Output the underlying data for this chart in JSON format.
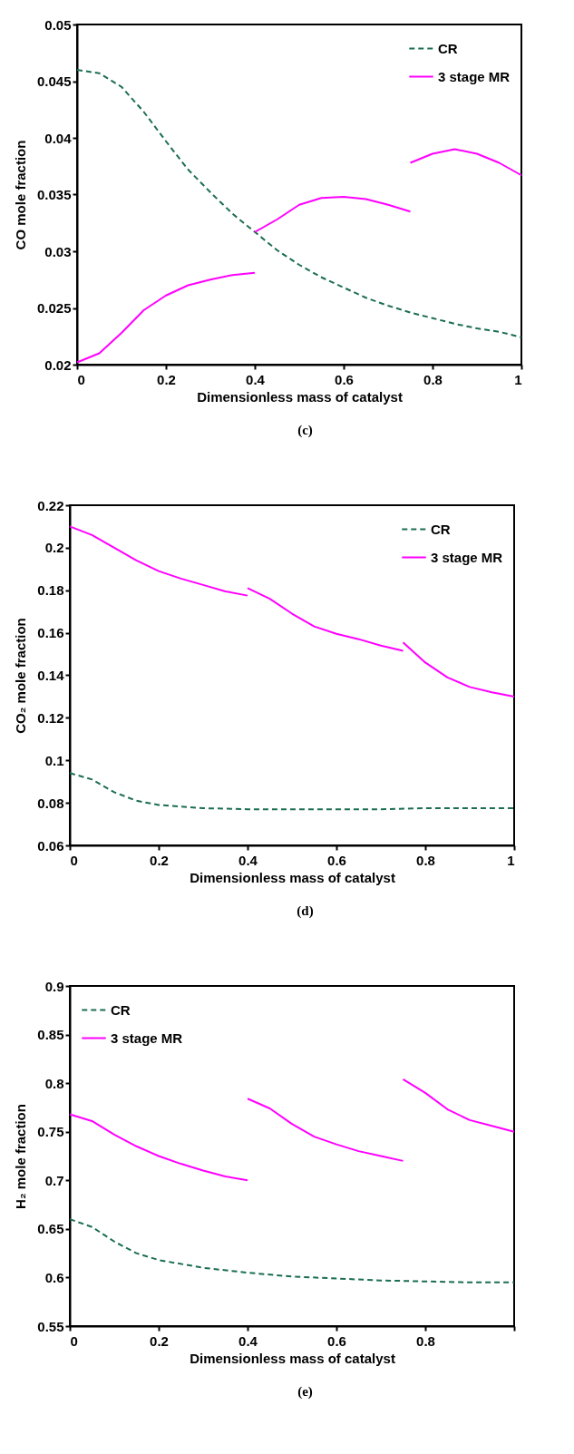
{
  "chart_data": [
    {
      "type": "line",
      "xlabel": "Dimensionless mass of catalyst",
      "ylabel": "CO mole fraction",
      "annotations": [
        "(c)"
      ],
      "xlim": [
        0,
        1
      ],
      "ylim": [
        0.02,
        0.05
      ],
      "xticks": [
        0,
        0.2,
        0.4,
        0.6,
        0.8,
        1
      ],
      "yticks": [
        0.02,
        0.025,
        0.03,
        0.035,
        0.04,
        0.045,
        0.05
      ],
      "legend": "top right",
      "series": [
        {
          "name": "CR",
          "color": "#1b6e4f",
          "line_style": "dashed",
          "x": [
            0,
            0.05,
            0.1,
            0.15,
            0.2,
            0.25,
            0.3,
            0.35,
            0.4,
            0.45,
            0.5,
            0.55,
            0.6,
            0.65,
            0.7,
            0.75,
            0.8,
            0.85,
            0.9,
            0.95,
            1
          ],
          "values": [
            0.046,
            0.0457,
            0.0445,
            0.0423,
            0.0397,
            0.0372,
            0.0352,
            0.0333,
            0.0317,
            0.0301,
            0.0288,
            0.0277,
            0.0268,
            0.0259,
            0.0252,
            0.0246,
            0.0241,
            0.0236,
            0.0232,
            0.0229,
            0.0224
          ]
        },
        {
          "name": "3 stage MR",
          "color": "#ff00ff",
          "line_style": "solid",
          "x": [
            0,
            0.05,
            0.1,
            0.15,
            0.2,
            0.25,
            0.3,
            0.35,
            0.4
          ],
          "values": [
            0.0202,
            0.021,
            0.0228,
            0.0248,
            0.0261,
            0.027,
            0.0275,
            0.0279,
            0.0281
          ]
        },
        {
          "color": "#ff00ff",
          "line_style": "solid",
          "x": [
            0.4,
            0.45,
            0.5,
            0.55,
            0.6,
            0.65,
            0.7,
            0.75
          ],
          "values": [
            0.0317,
            0.0328,
            0.0341,
            0.0347,
            0.0348,
            0.0346,
            0.0341,
            0.0335
          ]
        },
        {
          "color": "#ff00ff",
          "line_style": "solid",
          "x": [
            0.75,
            0.8,
            0.85,
            0.9,
            0.95,
            1
          ],
          "values": [
            0.0378,
            0.0386,
            0.039,
            0.0386,
            0.0378,
            0.0367
          ]
        }
      ]
    },
    {
      "type": "line",
      "xlabel": "Dimensionless mass of catalyst",
      "ylabel": "CO₂ mole fraction",
      "annotations": [
        "(d)"
      ],
      "xlim": [
        0,
        1
      ],
      "ylim": [
        0.06,
        0.22
      ],
      "xticks": [
        0,
        0.2,
        0.4,
        0.6,
        0.8,
        1
      ],
      "yticks": [
        0.06,
        0.08,
        0.1,
        0.12,
        0.14,
        0.16,
        0.18,
        0.2,
        0.22
      ],
      "legend": "top right",
      "series": [
        {
          "name": "CR",
          "color": "#1b6e4f",
          "line_style": "dashed",
          "x": [
            0,
            0.05,
            0.1,
            0.15,
            0.2,
            0.3,
            0.4,
            0.5,
            0.6,
            0.7,
            0.8,
            0.9,
            1
          ],
          "values": [
            0.094,
            0.091,
            0.085,
            0.081,
            0.079,
            0.0775,
            0.077,
            0.077,
            0.077,
            0.077,
            0.0775,
            0.0775,
            0.0775
          ]
        },
        {
          "name": "3 stage MR",
          "color": "#ff00ff",
          "line_style": "solid",
          "x": [
            0,
            0.05,
            0.1,
            0.15,
            0.2,
            0.25,
            0.3,
            0.35,
            0.4
          ],
          "values": [
            0.21,
            0.206,
            0.2,
            0.194,
            0.189,
            0.1855,
            0.1825,
            0.1795,
            0.1775
          ]
        },
        {
          "color": "#ff00ff",
          "line_style": "solid",
          "x": [
            0.4,
            0.45,
            0.5,
            0.55,
            0.6,
            0.65,
            0.7,
            0.75
          ],
          "values": [
            0.181,
            0.176,
            0.169,
            0.163,
            0.1595,
            0.157,
            0.154,
            0.1515
          ]
        },
        {
          "color": "#ff00ff",
          "line_style": "solid",
          "x": [
            0.75,
            0.8,
            0.85,
            0.9,
            0.95,
            1
          ],
          "values": [
            0.1555,
            0.146,
            0.139,
            0.1345,
            0.132,
            0.13
          ]
        }
      ]
    },
    {
      "type": "line",
      "xlabel": "Dimensionless mass of catalyst",
      "ylabel": "H₂ mole fraction",
      "annotations": [
        "(e)"
      ],
      "xlim": [
        0,
        1
      ],
      "ylim": [
        0.55,
        0.9
      ],
      "xticks": [
        0,
        0.2,
        0.4,
        0.6,
        0.8,
        {
          "value": 1,
          "label": null
        }
      ],
      "yticks": [
        0.55,
        0.6,
        0.65,
        0.7,
        0.75,
        0.8,
        0.85,
        0.9
      ],
      "legend": "top left",
      "series": [
        {
          "name": "CR",
          "color": "#1b6e4f",
          "line_style": "dashed",
          "x": [
            0,
            0.05,
            0.1,
            0.15,
            0.2,
            0.3,
            0.4,
            0.5,
            0.6,
            0.7,
            0.8,
            0.9,
            1
          ],
          "values": [
            0.66,
            0.652,
            0.637,
            0.625,
            0.618,
            0.61,
            0.605,
            0.601,
            0.599,
            0.597,
            0.596,
            0.595,
            0.595
          ]
        },
        {
          "name": "3 stage MR",
          "color": "#ff00ff",
          "line_style": "solid",
          "x": [
            0,
            0.05,
            0.1,
            0.15,
            0.2,
            0.25,
            0.3,
            0.35,
            0.4
          ],
          "values": [
            0.768,
            0.761,
            0.747,
            0.735,
            0.725,
            0.717,
            0.71,
            0.704,
            0.7
          ]
        },
        {
          "color": "#ff00ff",
          "line_style": "solid",
          "x": [
            0.4,
            0.45,
            0.5,
            0.55,
            0.6,
            0.65,
            0.7,
            0.75
          ],
          "values": [
            0.784,
            0.774,
            0.758,
            0.745,
            0.737,
            0.73,
            0.725,
            0.72
          ]
        },
        {
          "color": "#ff00ff",
          "line_style": "solid",
          "x": [
            0.75,
            0.8,
            0.85,
            0.9,
            0.95,
            1
          ],
          "values": [
            0.804,
            0.79,
            0.773,
            0.762,
            0.756,
            0.75
          ]
        }
      ]
    }
  ]
}
